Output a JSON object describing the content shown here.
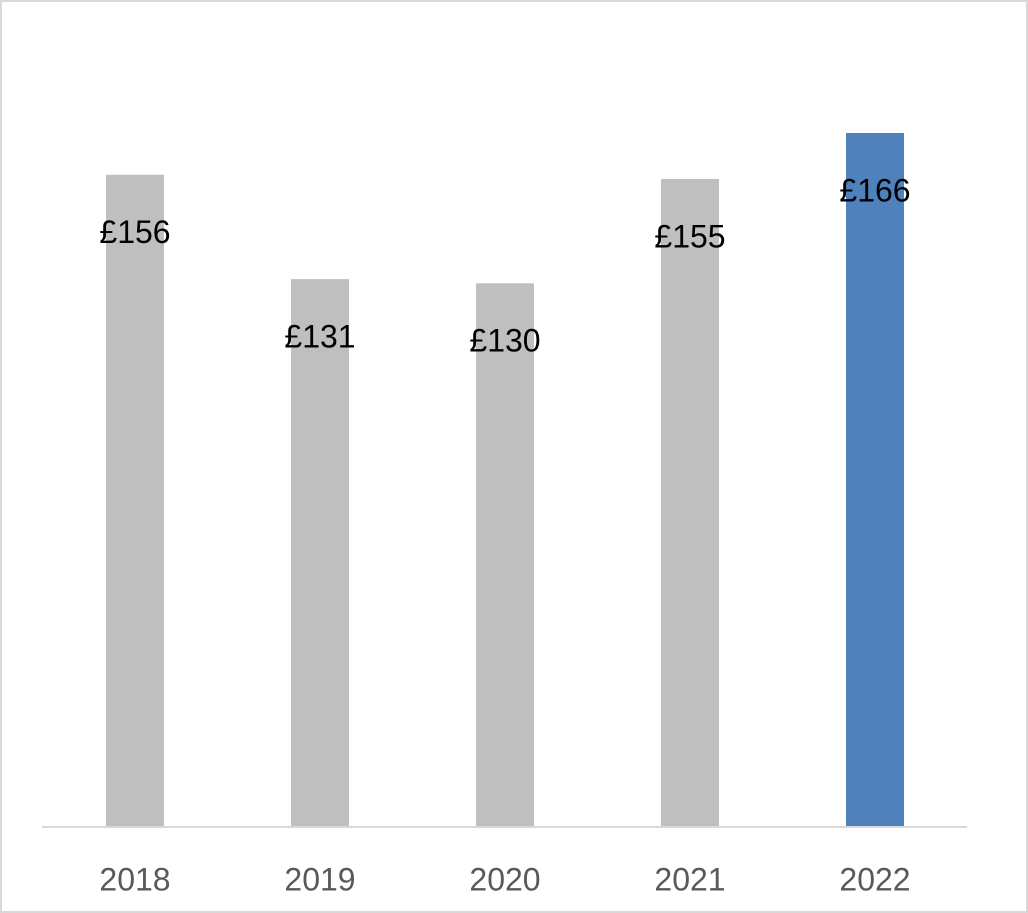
{
  "chart_data": {
    "type": "bar",
    "categories": [
      "2018",
      "2019",
      "2020",
      "2021",
      "2022"
    ],
    "values": [
      156,
      131,
      130,
      155,
      166
    ],
    "value_labels": [
      "£156",
      "£131",
      "£130",
      "£155",
      "£166"
    ],
    "colors": [
      "#bfbfbf",
      "#bfbfbf",
      "#bfbfbf",
      "#bfbfbf",
      "#4f81bd"
    ]
  }
}
